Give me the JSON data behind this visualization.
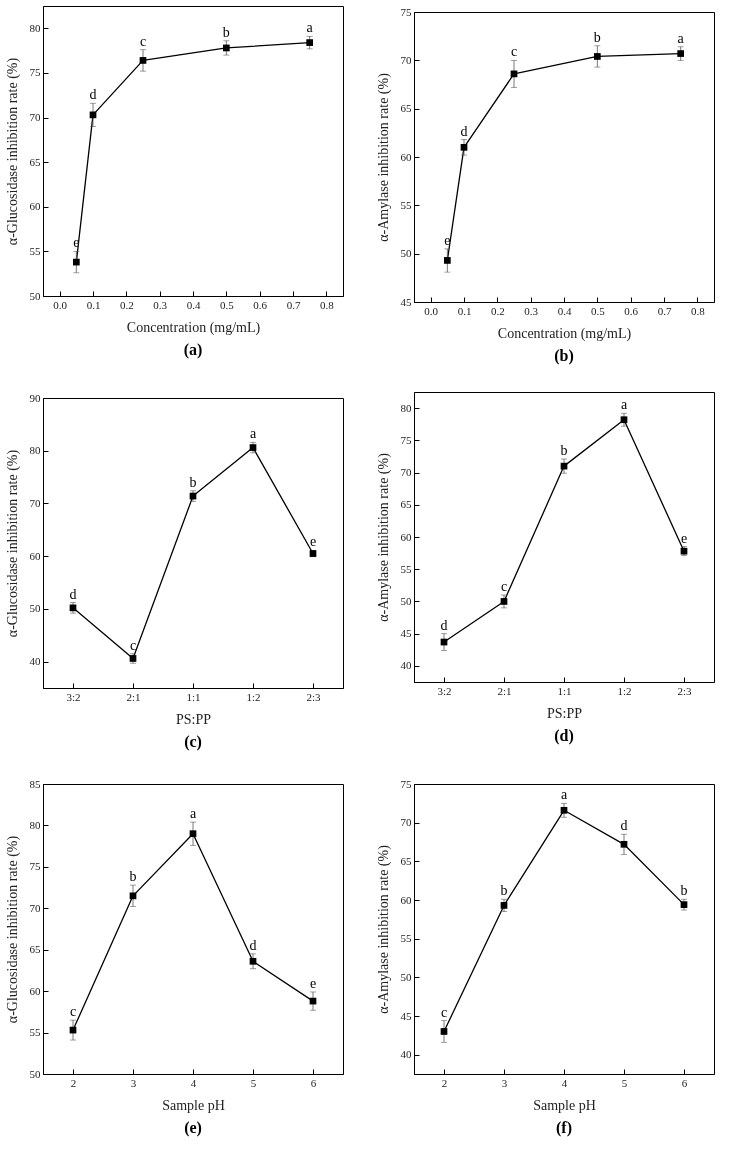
{
  "chart_data": [
    {
      "type": "line",
      "title": "(a)",
      "xlabel": "Concentration (mg/mL)",
      "ylabel": "α-Glucosidase inhibition rate (%)",
      "marker": "square",
      "line_style": "solid",
      "x": [
        0.05,
        0.1,
        0.25,
        0.5,
        0.75
      ],
      "xlim": [
        -0.05,
        0.85
      ],
      "xticks": [
        {
          "value": 0,
          "label": "0.0"
        },
        0.1,
        0.2,
        0.3,
        0.4,
        0.5,
        0.6,
        0.7,
        0.8
      ],
      "ylim": [
        50,
        82.5
      ],
      "yticks": [
        50,
        55,
        60,
        65,
        70,
        75,
        80
      ],
      "series": [
        {
          "color": "#000000",
          "values": [
            53.8,
            70.3,
            76.4,
            77.8,
            78.4
          ],
          "errors": [
            1.2,
            1.3,
            1.2,
            0.8,
            0.7
          ]
        }
      ],
      "annotations": [
        {
          "text": "e",
          "x": 0.05,
          "y": 55
        },
        {
          "text": "d",
          "x": 0.1,
          "y": 71.6
        },
        {
          "text": "c",
          "x": 0.25,
          "y": 77.6
        },
        {
          "text": "b",
          "x": 0.5,
          "y": 78.6
        },
        {
          "text": "a",
          "x": 0.75,
          "y": 79.1
        }
      ]
    },
    {
      "type": "line",
      "title": "(b)",
      "xlabel": "Concentration (mg/mL)",
      "ylabel": "α-Amylase inhibition rate (%)",
      "marker": "square",
      "line_style": "solid",
      "x": [
        0.05,
        0.1,
        0.25,
        0.5,
        0.75
      ],
      "xlim": [
        -0.05,
        0.85
      ],
      "xticks": [
        {
          "value": 0,
          "label": "0.0"
        },
        0.1,
        0.2,
        0.3,
        0.4,
        0.5,
        0.6,
        0.7,
        0.8
      ],
      "ylim": [
        45,
        75
      ],
      "yticks": [
        45,
        50,
        55,
        60,
        65,
        70,
        75
      ],
      "series": [
        {
          "color": "#000000",
          "values": [
            49.3,
            61.0,
            68.6,
            70.4,
            70.7
          ],
          "errors": [
            1.2,
            0.8,
            1.4,
            1.1,
            0.7
          ]
        }
      ],
      "annotations": [
        {
          "text": "e",
          "x": 0.05,
          "y": 50.5
        },
        {
          "text": "d",
          "x": 0.1,
          "y": 61.8
        },
        {
          "text": "c",
          "x": 0.25,
          "y": 70
        },
        {
          "text": "b",
          "x": 0.5,
          "y": 71.5
        },
        {
          "text": "a",
          "x": 0.75,
          "y": 71.4
        }
      ]
    },
    {
      "type": "line",
      "title": "(c)",
      "xlabel": "PS:PP",
      "ylabel": "α-Glucosidase inhibition rate (%)",
      "marker": "square",
      "line_style": "solid",
      "categories": [
        "3:2",
        "2:1",
        "1:1",
        "1:2",
        "2:3"
      ],
      "ylim": [
        35,
        90
      ],
      "yticks": [
        40,
        50,
        60,
        70,
        80,
        90
      ],
      "series": [
        {
          "color": "#000000",
          "values": [
            50.2,
            40.6,
            71.4,
            80.6,
            60.5
          ],
          "errors": [
            1.0,
            0.9,
            1.0,
            1.0,
            0.6
          ]
        }
      ],
      "annotations": [
        {
          "text": "d",
          "x": "3:2",
          "y": 51.2
        },
        {
          "text": "c",
          "x": "2:1",
          "y": 41.5
        },
        {
          "text": "b",
          "x": "1:1",
          "y": 72.4
        },
        {
          "text": "a",
          "x": "1:2",
          "y": 81.6
        },
        {
          "text": "e",
          "x": "2:3",
          "y": 61.1
        }
      ]
    },
    {
      "type": "line",
      "title": "(d)",
      "xlabel": "PS:PP",
      "ylabel": "α-Amylase inhibition rate (%)",
      "marker": "square",
      "line_style": "solid",
      "categories": [
        "3:2",
        "2:1",
        "1:1",
        "1:2",
        "2:3"
      ],
      "ylim": [
        37.5,
        82.5
      ],
      "yticks": [
        40,
        45,
        50,
        55,
        60,
        65,
        70,
        75,
        80
      ],
      "series": [
        {
          "color": "#000000",
          "values": [
            43.7,
            50.0,
            71.0,
            78.2,
            57.8
          ],
          "errors": [
            1.3,
            1.0,
            1.1,
            1.0,
            0.7
          ]
        }
      ],
      "annotations": [
        {
          "text": "d",
          "x": "3:2",
          "y": 45
        },
        {
          "text": "c",
          "x": "2:1",
          "y": 51
        },
        {
          "text": "b",
          "x": "1:1",
          "y": 72.1
        },
        {
          "text": "a",
          "x": "1:2",
          "y": 79.2
        },
        {
          "text": "e",
          "x": "2:3",
          "y": 58.5
        }
      ]
    },
    {
      "type": "line",
      "title": "(e)",
      "xlabel": "Sample pH",
      "ylabel": "α-Glucosidase inhibition rate (%)",
      "marker": "square",
      "line_style": "solid",
      "x": [
        2,
        3,
        4,
        5,
        6
      ],
      "xlim": [
        1.5,
        6.5
      ],
      "xticks": [
        2,
        3,
        4,
        5,
        6
      ],
      "ylim": [
        50,
        85
      ],
      "yticks": [
        50,
        55,
        60,
        65,
        70,
        75,
        80,
        85
      ],
      "series": [
        {
          "color": "#000000",
          "values": [
            55.3,
            71.5,
            79.0,
            63.6,
            58.8
          ],
          "errors": [
            1.2,
            1.3,
            1.4,
            0.9,
            1.1
          ]
        }
      ],
      "annotations": [
        {
          "text": "c",
          "x": 2,
          "y": 56.5
        },
        {
          "text": "b",
          "x": 3,
          "y": 72.8
        },
        {
          "text": "a",
          "x": 4,
          "y": 80.4
        },
        {
          "text": "d",
          "x": 5,
          "y": 64.5
        },
        {
          "text": "e",
          "x": 6,
          "y": 59.9
        }
      ]
    },
    {
      "type": "line",
      "title": "(f)",
      "xlabel": "Sample pH",
      "ylabel": "α-Amylase inhibition rate (%)",
      "marker": "square",
      "line_style": "solid",
      "x": [
        2,
        3,
        4,
        5,
        6
      ],
      "xlim": [
        1.5,
        6.5
      ],
      "xticks": [
        2,
        3,
        4,
        5,
        6
      ],
      "ylim": [
        37.5,
        75
      ],
      "yticks": [
        40,
        45,
        50,
        55,
        60,
        65,
        70,
        75
      ],
      "series": [
        {
          "color": "#000000",
          "values": [
            43.0,
            59.3,
            71.6,
            67.2,
            59.4
          ],
          "errors": [
            1.4,
            0.8,
            0.9,
            1.3,
            0.7
          ]
        }
      ],
      "annotations": [
        {
          "text": "c",
          "x": 2,
          "y": 44.4
        },
        {
          "text": "b",
          "x": 3,
          "y": 60.1
        },
        {
          "text": "a",
          "x": 4,
          "y": 72.5
        },
        {
          "text": "d",
          "x": 5,
          "y": 68.5
        },
        {
          "text": "b",
          "x": 6,
          "y": 60.1
        }
      ]
    }
  ]
}
